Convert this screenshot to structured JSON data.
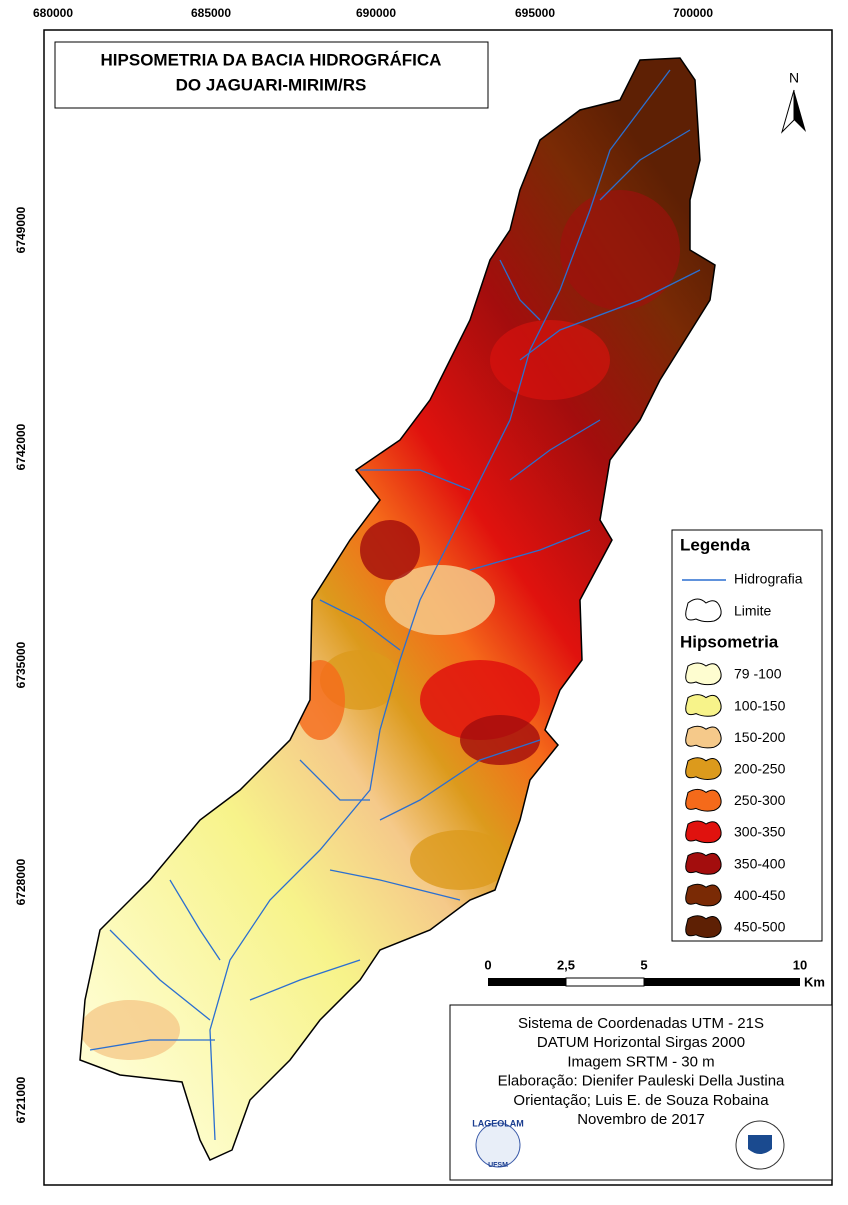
{
  "title": {
    "line1": "HIPSOMETRIA DA BACIA HIDROGRÁFICA",
    "line2": "DO JAGUARI-MIRIM/RS"
  },
  "north": "N",
  "x_coordinates": [
    "680000",
    "685000",
    "690000",
    "695000",
    "700000"
  ],
  "y_coordinates": [
    "6749000",
    "6742000",
    "6735000",
    "6728000",
    "6721000"
  ],
  "legend": {
    "title": "Legenda",
    "hydrography": "Hidrografia",
    "boundary": "Limite",
    "hypsometry_title": "Hipsometria",
    "classes": [
      {
        "label": "79 -100",
        "color": "#fefdd0"
      },
      {
        "label": "100-150",
        "color": "#f7f38a"
      },
      {
        "label": "150-200",
        "color": "#f5c98a"
      },
      {
        "label": "200-250",
        "color": "#dc9a1c"
      },
      {
        "label": "250-300",
        "color": "#f56a1a"
      },
      {
        "label": "300-350",
        "color": "#e0120e"
      },
      {
        "label": "350-400",
        "color": "#a30d0d"
      },
      {
        "label": "400-450",
        "color": "#7a2a05"
      },
      {
        "label": "450-500",
        "color": "#5e2004"
      }
    ]
  },
  "scale_bar": {
    "labels": [
      "0",
      "2,5",
      "5",
      "10"
    ],
    "unit": "Km"
  },
  "credits": [
    "Sistema de Coordenadas UTM - 21S",
    "DATUM Horizontal Sirgas 2000",
    "Imagem SRTM - 30 m",
    "Elaboração: Dienifer Pauleski Della Justina",
    "Orientação; Luis E. de Souza Robaina",
    "Novembro de 2017"
  ],
  "logos": {
    "left": "LAGEOLAM",
    "left_sub": "UFSM"
  }
}
